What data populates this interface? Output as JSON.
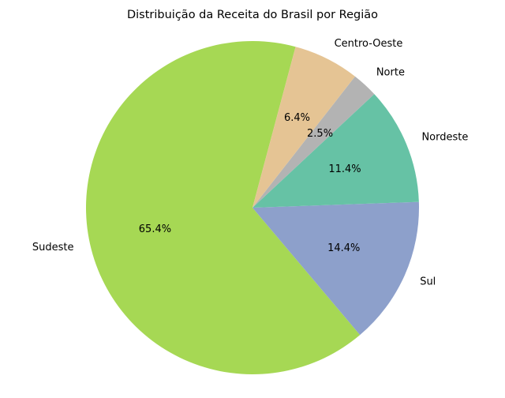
{
  "chart_data": {
    "type": "pie",
    "title": "Distribuição da Receita do Brasil por Região",
    "slices": [
      {
        "label": "Sudeste",
        "value": 65.4,
        "pct_label": "65.4%",
        "color": "#a6d854"
      },
      {
        "label": "Sul",
        "value": 14.4,
        "pct_label": "14.4%",
        "color": "#8da0cb"
      },
      {
        "label": "Nordeste",
        "value": 11.4,
        "pct_label": "11.4%",
        "color": "#66c2a5"
      },
      {
        "label": "Norte",
        "value": 2.5,
        "pct_label": "2.5%",
        "color": "#b3b3b3"
      },
      {
        "label": "Centro-Oeste",
        "value": 6.4,
        "pct_label": "6.4%",
        "color": "#e5c494"
      }
    ],
    "start_angle_deg": 75,
    "direction": "counterclockwise",
    "legend": "none"
  }
}
